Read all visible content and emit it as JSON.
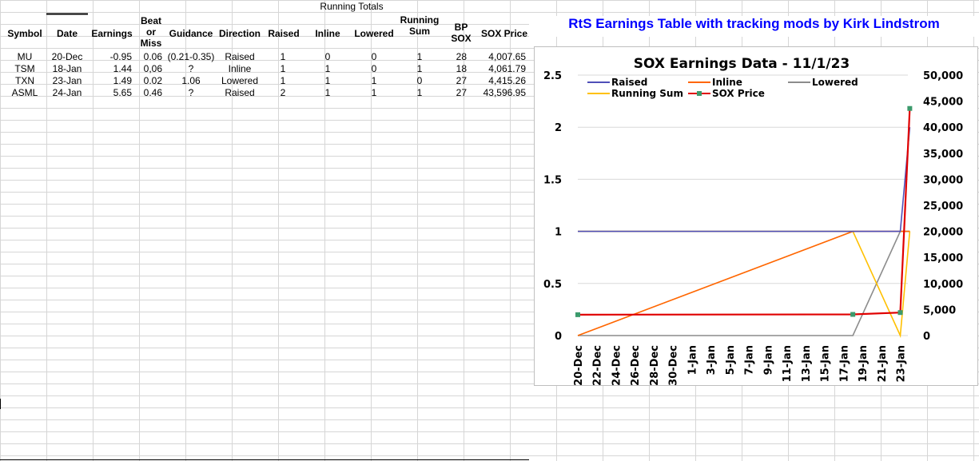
{
  "sheet": {
    "running_totals_label": "Running Totals",
    "headers": {
      "symbol": "Symbol",
      "date": "Date",
      "earnings": "Earnings",
      "beat_or_miss": [
        "Beat",
        "or",
        "Miss"
      ],
      "guidance": "Guidance",
      "direction": "Direction",
      "raised": "Raised",
      "inline": "Inline",
      "lowered": "Lowered",
      "running_sum": [
        "Running",
        "Sum"
      ],
      "bp_sox": [
        "BP",
        "SOX"
      ],
      "sox_price": "SOX Price"
    },
    "rows": [
      {
        "symbol": "MU",
        "date": "20-Dec",
        "earnings": "-0.95",
        "beat": "0.06",
        "guidance": "(0.21-0.35)",
        "direction": "Raised",
        "raised": "1",
        "inline": "0",
        "lowered": "0",
        "running_sum": "1",
        "bp_sox": "28",
        "sox_price": "4,007.65"
      },
      {
        "symbol": "TSM",
        "date": "18-Jan",
        "earnings": "1.44",
        "beat": "0,06",
        "guidance": "?",
        "direction": "Inline",
        "raised": "1",
        "inline": "1",
        "lowered": "0",
        "running_sum": "1",
        "bp_sox": "18",
        "sox_price": "4,061.79"
      },
      {
        "symbol": "TXN",
        "date": "23-Jan",
        "earnings": "1.49",
        "beat": "0.02",
        "guidance": "1.06",
        "direction": "Lowered",
        "raised": "1",
        "inline": "1",
        "lowered": "1",
        "running_sum": "0",
        "bp_sox": "27",
        "sox_price": "4,415.26"
      },
      {
        "symbol": "ASML",
        "date": "24-Jan",
        "earnings": "5.65",
        "beat": "0.46",
        "guidance": "?",
        "direction": "Raised",
        "raised": "2",
        "inline": "1",
        "lowered": "1",
        "running_sum": "1",
        "bp_sox": "27",
        "sox_price": "43,596.95"
      }
    ]
  },
  "banner_title": "RtS Earnings Table with tracking mods by Kirk Lindstrom",
  "chart_data": {
    "type": "line",
    "title": "SOX Earnings Data - 11/1/23",
    "x_dates": [
      "20-Dec",
      "18-Jan",
      "23-Jan",
      "24-Jan"
    ],
    "x_day_index": [
      0,
      29,
      34,
      35
    ],
    "x_tick_labels": [
      "20-Dec",
      "22-Dec",
      "24-Dec",
      "26-Dec",
      "28-Dec",
      "30-Dec",
      "1-Jan",
      "3-Jan",
      "5-Jan",
      "7-Jan",
      "9-Jan",
      "11-Jan",
      "13-Jan",
      "15-Jan",
      "17-Jan",
      "19-Jan",
      "21-Jan",
      "23-Jan"
    ],
    "y_left_ticks": [
      "0",
      "0.5",
      "1",
      "1.5",
      "2",
      "2.5"
    ],
    "y_left_range": [
      0,
      2.5
    ],
    "y_right_ticks": [
      "0",
      "5,000",
      "10,000",
      "15,000",
      "20,000",
      "25,000",
      "30,000",
      "35,000",
      "40,000",
      "45,000",
      "50,000"
    ],
    "y_right_range": [
      0,
      50000
    ],
    "legend_position": "top",
    "series": [
      {
        "name": "Raised",
        "color": "#4f4fb8",
        "axis": "left",
        "values": [
          1,
          1,
          1,
          2
        ]
      },
      {
        "name": "Inline",
        "color": "#ff6600",
        "axis": "left",
        "values": [
          0,
          1,
          1,
          1
        ]
      },
      {
        "name": "Lowered",
        "color": "#8c8c8c",
        "axis": "left",
        "values": [
          0,
          0,
          1,
          1
        ]
      },
      {
        "name": "Running Sum",
        "color": "#ffc000",
        "axis": "left",
        "values": [
          1,
          1,
          0,
          1
        ]
      },
      {
        "name": "SOX Price",
        "color": "#e00000",
        "marker": "#3c9a6c",
        "axis": "right",
        "values": [
          4007.65,
          4061.79,
          4415.26,
          43596.95
        ]
      }
    ]
  }
}
